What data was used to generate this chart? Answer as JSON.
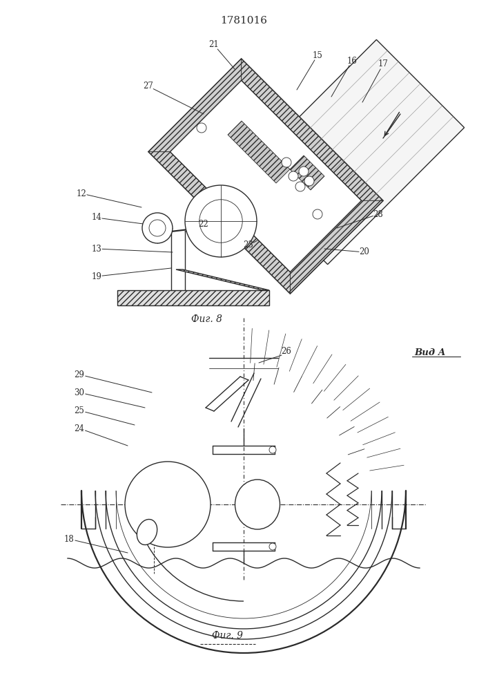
{
  "title": "1781016",
  "fig8_caption": "Фиг. 8",
  "fig9_caption": "Фиг. 9",
  "vid_a_label": "Вид А",
  "background_color": "#ffffff",
  "line_color": "#2a2a2a"
}
